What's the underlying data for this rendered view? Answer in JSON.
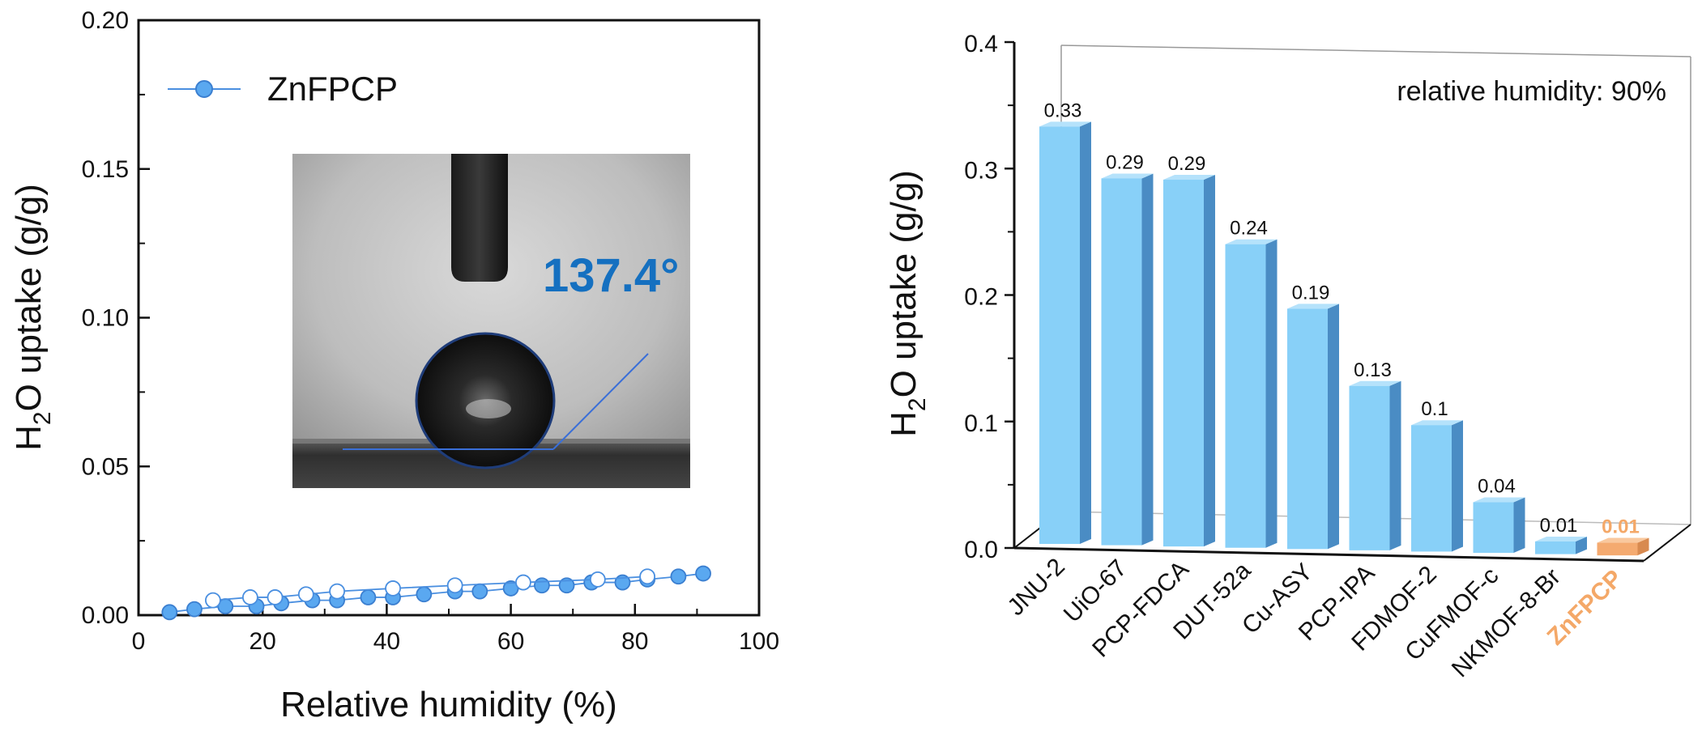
{
  "chart_data": [
    {
      "type": "scatter",
      "xlabel": "Relative humidity (%)",
      "ylabel_main": "H",
      "ylabel_sub": "2",
      "ylabel_rest": "O uptake (g/g)",
      "xlim": [
        0,
        100
      ],
      "ylim": [
        0,
        0.2
      ],
      "xticks": [
        0,
        20,
        40,
        60,
        80,
        100
      ],
      "yticks": [
        0.0,
        0.05,
        0.1,
        0.15,
        0.2
      ],
      "xtick_labels": [
        "0",
        "20",
        "40",
        "60",
        "80",
        "100"
      ],
      "ytick_labels": [
        "0.00",
        "0.05",
        "0.10",
        "0.15",
        "0.20"
      ],
      "legend": "top-left",
      "series": [
        {
          "name": "ZnFPCP",
          "marker": "filled",
          "x": [
            5,
            9,
            14,
            19,
            23,
            28,
            32,
            37,
            41,
            46,
            51,
            55,
            60,
            65,
            69,
            73,
            78,
            82,
            87,
            91
          ],
          "y": [
            0.001,
            0.002,
            0.003,
            0.003,
            0.004,
            0.005,
            0.005,
            0.006,
            0.006,
            0.007,
            0.008,
            0.008,
            0.009,
            0.01,
            0.01,
            0.011,
            0.011,
            0.012,
            0.013,
            0.014
          ]
        },
        {
          "name": "",
          "marker": "hollow",
          "x": [
            12,
            18,
            22,
            27,
            32,
            41,
            51,
            62,
            74,
            82
          ],
          "y": [
            0.005,
            0.006,
            0.006,
            0.007,
            0.008,
            0.009,
            0.01,
            0.011,
            0.012,
            0.013
          ]
        }
      ],
      "inset": {
        "kind": "contact-angle-photo",
        "label": "137.4°",
        "label_color": "#1570c0"
      },
      "colors": {
        "marker": "#5aa8f0",
        "line": "#4a8fe0"
      }
    },
    {
      "type": "bar",
      "ylabel_main": "H",
      "ylabel_sub": "2",
      "ylabel_rest": "O uptake (g/g)",
      "ylim": [
        0,
        0.4
      ],
      "yticks": [
        0.0,
        0.1,
        0.2,
        0.3,
        0.4
      ],
      "ytick_labels": [
        "0.0",
        "0.1",
        "0.2",
        "0.3",
        "0.4"
      ],
      "annotation": "relative humidity: 90%",
      "categories": [
        "JNU-2",
        "UiO-67",
        "PCP-FDCA",
        "DUT-52a",
        "Cu-ASY",
        "PCP-IPA",
        "FDMOF-2",
        "CuFMOF-c",
        "NKMOF-8-Br",
        "ZnFPCP"
      ],
      "values": [
        0.33,
        0.29,
        0.29,
        0.24,
        0.19,
        0.13,
        0.1,
        0.04,
        0.01,
        0.01
      ],
      "value_labels": [
        "0.33",
        "0.29",
        "0.29",
        "0.24",
        "0.19",
        "0.13",
        "0.1",
        "0.04",
        "0.01",
        "0.01"
      ],
      "highlight": "ZnFPCP",
      "colors": {
        "bar_front": "#88d0f8",
        "bar_side": "#4a8cc4",
        "bar_top": "#b5e2fb",
        "highlight_front": "#f4aa70",
        "highlight_side": "#d88a50",
        "highlight_top": "#f9c89e",
        "highlight_text": "#f4a868"
      }
    }
  ]
}
